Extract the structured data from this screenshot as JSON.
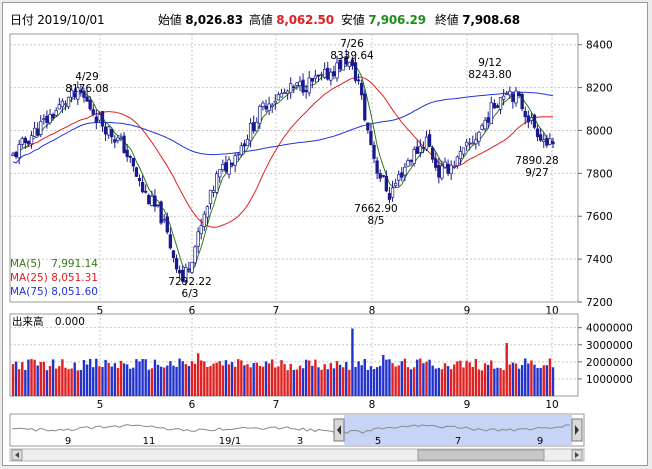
{
  "header": {
    "date_label": "日付",
    "date": "2019/10/01",
    "open_label": "始値",
    "open": "8,026.83",
    "high_label": "高値",
    "high": "8,062.50",
    "low_label": "安値",
    "low": "7,906.29",
    "close_label": "終値",
    "close": "7,908.68"
  },
  "legend": [
    {
      "name": "MA(5)",
      "value": "7,991.14",
      "color": "#2e7d1a"
    },
    {
      "name": "MA(25)",
      "value": "8,051.31",
      "color": "#e02020"
    },
    {
      "name": "MA(75)",
      "value": "8,051.60",
      "color": "#2233dd"
    }
  ],
  "volume_label": "出来高",
  "volume_value": "0.000",
  "colors": {
    "up": "#ffffff",
    "down": "#1a1a8c",
    "vol_up": "#e02020",
    "vol_down": "#2233cc"
  },
  "chart_data": [
    {
      "type": "candlestick",
      "ylim": [
        7200,
        8450
      ],
      "y_ticks": [
        7200,
        7400,
        7600,
        7800,
        8000,
        8200,
        8400
      ],
      "x_tick_labels": [
        "5",
        "6",
        "7",
        "8",
        "9",
        "10"
      ],
      "annotations": [
        {
          "date": "4/29",
          "value": "8176.08",
          "type": "high"
        },
        {
          "date": "6/3",
          "value": "7292.22",
          "type": "low"
        },
        {
          "date": "7/26",
          "value": "8339.64",
          "type": "high"
        },
        {
          "date": "8/5",
          "value": "7662.90",
          "type": "low"
        },
        {
          "date": "9/12",
          "value": "8243.80",
          "type": "high"
        },
        {
          "date": "9/27",
          "value": "7890.28",
          "type": "low"
        }
      ],
      "series": [
        {
          "name": "MA(5)"
        },
        {
          "name": "MA(25)"
        },
        {
          "name": "MA(75)"
        }
      ]
    },
    {
      "type": "bar",
      "ylim": [
        0,
        4800000
      ],
      "y_ticks": [
        1000000,
        2000000,
        3000000,
        4000000
      ],
      "x_tick_labels": [
        "5",
        "6",
        "7",
        "8",
        "9",
        "10"
      ]
    },
    {
      "type": "area",
      "x_tick_labels": [
        "9",
        "11",
        "19/1",
        "3",
        "5",
        "7",
        "9"
      ]
    }
  ]
}
